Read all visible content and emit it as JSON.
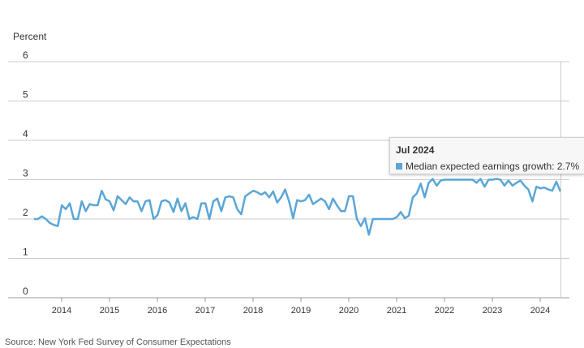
{
  "chart_data": {
    "type": "line",
    "title": "",
    "ylabel": "Percent",
    "xlabel": "",
    "ylim": [
      0,
      6
    ],
    "yticks": [
      "0",
      "1",
      "2",
      "3",
      "4",
      "5",
      "6"
    ],
    "x_start": 2013.42,
    "x_step_months": 1,
    "xticks": [
      "2014",
      "2015",
      "2016",
      "2017",
      "2018",
      "2019",
      "2020",
      "2021",
      "2022",
      "2023",
      "2024"
    ],
    "series": [
      {
        "name": "Median expected earnings growth",
        "color": "#5ba6d6",
        "values": [
          2.0,
          2.0,
          2.07,
          2.0,
          1.9,
          1.85,
          1.82,
          2.35,
          2.25,
          2.4,
          2.0,
          2.0,
          2.45,
          2.2,
          2.38,
          2.35,
          2.35,
          2.72,
          2.5,
          2.45,
          2.22,
          2.58,
          2.48,
          2.38,
          2.55,
          2.45,
          2.45,
          2.2,
          2.45,
          2.48,
          2.0,
          2.1,
          2.45,
          2.48,
          2.42,
          2.18,
          2.52,
          2.2,
          2.4,
          2.0,
          2.05,
          2.0,
          2.4,
          2.4,
          2.0,
          2.45,
          2.52,
          2.2,
          2.55,
          2.58,
          2.55,
          2.25,
          2.12,
          2.58,
          2.65,
          2.72,
          2.68,
          2.62,
          2.68,
          2.55,
          2.7,
          2.42,
          2.55,
          2.75,
          2.45,
          2.02,
          2.48,
          2.45,
          2.48,
          2.62,
          2.38,
          2.45,
          2.52,
          2.45,
          2.25,
          2.52,
          2.35,
          2.2,
          2.2,
          2.58,
          2.58,
          2.0,
          1.82,
          2.02,
          1.6,
          2.0,
          2.0,
          2.0,
          2.0,
          2.0,
          2.0,
          2.05,
          2.18,
          2.02,
          2.08,
          2.55,
          2.65,
          2.9,
          2.55,
          2.92,
          3.02,
          2.85,
          2.98,
          3.0,
          3.0,
          3.0,
          3.0,
          3.0,
          3.0,
          3.0,
          3.0,
          2.92,
          3.02,
          2.82,
          3.0,
          3.0,
          3.02,
          3.0,
          2.85,
          2.98,
          2.85,
          2.92,
          2.98,
          2.85,
          2.75,
          2.45,
          2.82,
          2.78,
          2.8,
          2.75,
          2.72,
          2.95,
          2.7
        ]
      }
    ],
    "highlight": {
      "label": "Jul 2024",
      "value": "2.7%"
    }
  },
  "tooltip": {
    "title": "Jul 2024",
    "row": "Median expected earnings growth: 2.7%"
  },
  "source": "Source: New York Fed Survey of Consumer Expectations"
}
